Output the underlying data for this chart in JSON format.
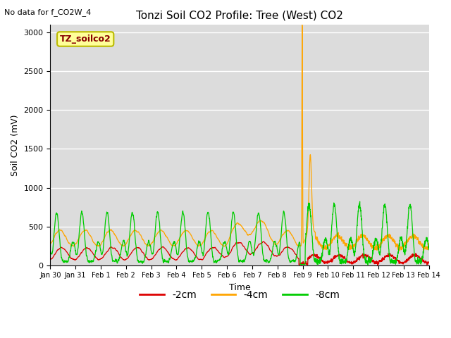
{
  "title": "Tonzi Soil CO2 Profile: Tree (West) CO2",
  "no_data_note": "No data for f_CO2W_4",
  "ylabel": "Soil CO2 (mV)",
  "xlabel": "Time",
  "ylim": [
    0,
    3100
  ],
  "bg_color": "#dcdcdc",
  "line_colors": [
    "#dd0000",
    "#ffa500",
    "#00cc00"
  ],
  "line_labels": [
    "-2cm",
    "-4cm",
    "-8cm"
  ],
  "legend_box_label": "TZ_soilco2",
  "legend_box_bg": "#ffff99",
  "legend_box_edge": "#bbbb00",
  "xtick_labels": [
    "Jan 30",
    "Jan 31",
    "Feb 1",
    "Feb 2",
    "Feb 3",
    "Feb 4",
    "Feb 5",
    "Feb 6",
    "Feb 7",
    "Feb 8",
    "Feb 9",
    "Feb 10",
    "Feb 11",
    "Feb 12",
    "Feb 13",
    "Feb 14"
  ],
  "num_days": 15,
  "yticks": [
    0,
    500,
    1000,
    1500,
    2000,
    2500,
    3000
  ]
}
